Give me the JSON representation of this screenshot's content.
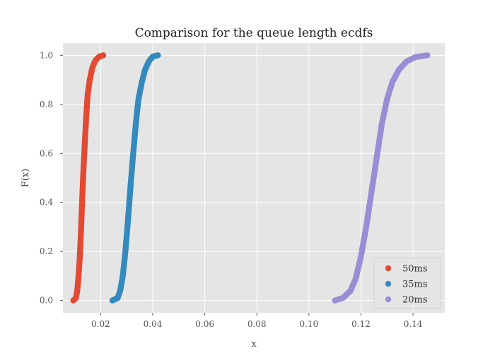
{
  "chart_data": {
    "type": "scatter",
    "title": "Comparison for the queue length ecdfs",
    "xlabel": "x",
    "ylabel": "F(x)",
    "xlim": [
      0.0055,
      0.1522
    ],
    "ylim": [
      -0.05,
      1.05
    ],
    "xticks": [
      0.02,
      0.04,
      0.06,
      0.08,
      0.1,
      0.12,
      0.14
    ],
    "xtick_labels": [
      "0.02",
      "0.04",
      "0.06",
      "0.08",
      "0.10",
      "0.12",
      "0.14"
    ],
    "yticks": [
      0.0,
      0.2,
      0.4,
      0.6,
      0.8,
      1.0
    ],
    "ytick_labels": [
      "0.0",
      "0.2",
      "0.4",
      "0.6",
      "0.8",
      "1.0"
    ],
    "grid": true,
    "legend_position": "bottom-right",
    "series": [
      {
        "name": "50ms",
        "color": "#E24A33",
        "points": [
          [
            0.0095,
            0.0
          ],
          [
            0.0105,
            0.01
          ],
          [
            0.011,
            0.04
          ],
          [
            0.0115,
            0.1
          ],
          [
            0.012,
            0.18
          ],
          [
            0.0125,
            0.3
          ],
          [
            0.013,
            0.44
          ],
          [
            0.0135,
            0.56
          ],
          [
            0.014,
            0.66
          ],
          [
            0.0145,
            0.76
          ],
          [
            0.015,
            0.84
          ],
          [
            0.0158,
            0.9
          ],
          [
            0.0168,
            0.95
          ],
          [
            0.018,
            0.98
          ],
          [
            0.0195,
            0.995
          ],
          [
            0.021,
            1.0
          ]
        ]
      },
      {
        "name": "35ms",
        "color": "#348ABD",
        "points": [
          [
            0.0245,
            0.0
          ],
          [
            0.0265,
            0.01
          ],
          [
            0.0275,
            0.04
          ],
          [
            0.0285,
            0.1
          ],
          [
            0.0295,
            0.2
          ],
          [
            0.0305,
            0.33
          ],
          [
            0.0315,
            0.47
          ],
          [
            0.0325,
            0.6
          ],
          [
            0.0335,
            0.72
          ],
          [
            0.0345,
            0.82
          ],
          [
            0.0358,
            0.89
          ],
          [
            0.037,
            0.94
          ],
          [
            0.0385,
            0.975
          ],
          [
            0.04,
            0.995
          ],
          [
            0.042,
            1.0
          ]
        ]
      },
      {
        "name": "20ms",
        "color": "#988ED5",
        "points": [
          [
            0.11,
            0.0
          ],
          [
            0.113,
            0.01
          ],
          [
            0.116,
            0.04
          ],
          [
            0.118,
            0.09
          ],
          [
            0.12,
            0.18
          ],
          [
            0.122,
            0.3
          ],
          [
            0.124,
            0.44
          ],
          [
            0.126,
            0.58
          ],
          [
            0.128,
            0.72
          ],
          [
            0.13,
            0.82
          ],
          [
            0.132,
            0.89
          ],
          [
            0.1345,
            0.94
          ],
          [
            0.1375,
            0.975
          ],
          [
            0.141,
            0.993
          ],
          [
            0.1455,
            1.0
          ]
        ]
      }
    ]
  }
}
